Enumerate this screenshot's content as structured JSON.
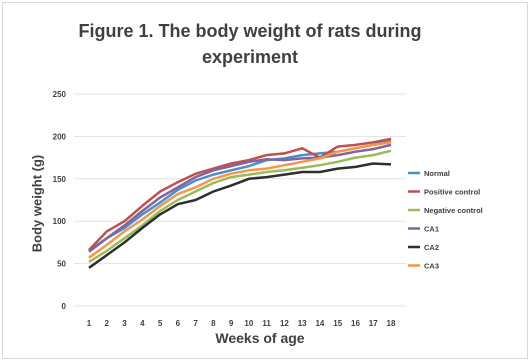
{
  "chart_data": {
    "type": "line",
    "title": "Figure 1. The body weight of rats during experiment",
    "xlabel": "Weeks of age",
    "ylabel": "Body weight (g)",
    "x": [
      1,
      2,
      3,
      4,
      5,
      6,
      7,
      8,
      9,
      10,
      11,
      12,
      13,
      14,
      15,
      16,
      17,
      18
    ],
    "ylim": [
      0,
      250
    ],
    "yticks": [
      0,
      50,
      100,
      150,
      200,
      250
    ],
    "grid": true,
    "legend_position": "right",
    "series": [
      {
        "name": "Normal",
        "color": "#4a90c8",
        "values": [
          65,
          80,
          92,
          108,
          122,
          137,
          148,
          155,
          160,
          165,
          172,
          174,
          178,
          180,
          182,
          186,
          190,
          195
        ]
      },
      {
        "name": "Positive control",
        "color": "#c0504d",
        "values": [
          66,
          88,
          100,
          118,
          135,
          146,
          156,
          162,
          168,
          172,
          178,
          180,
          186,
          175,
          188,
          190,
          193,
          197
        ]
      },
      {
        "name": "Negative control",
        "color": "#9bbb59",
        "values": [
          52,
          65,
          80,
          95,
          112,
          125,
          135,
          145,
          152,
          155,
          158,
          160,
          163,
          166,
          170,
          175,
          178,
          183
        ]
      },
      {
        "name": "CA1",
        "color": "#8064a2",
        "values": [
          64,
          80,
          95,
          112,
          128,
          140,
          152,
          160,
          165,
          170,
          173,
          172,
          174,
          175,
          178,
          182,
          185,
          190
        ]
      },
      {
        "name": "CA2",
        "color": "#2f2f2f",
        "values": [
          45,
          60,
          75,
          92,
          108,
          120,
          125,
          135,
          142,
          150,
          152,
          155,
          158,
          158,
          162,
          164,
          168,
          167
        ]
      },
      {
        "name": "CA3",
        "color": "#f79646",
        "values": [
          57,
          72,
          88,
          102,
          118,
          132,
          140,
          150,
          156,
          160,
          162,
          166,
          170,
          174,
          182,
          186,
          190,
          193
        ]
      }
    ]
  }
}
